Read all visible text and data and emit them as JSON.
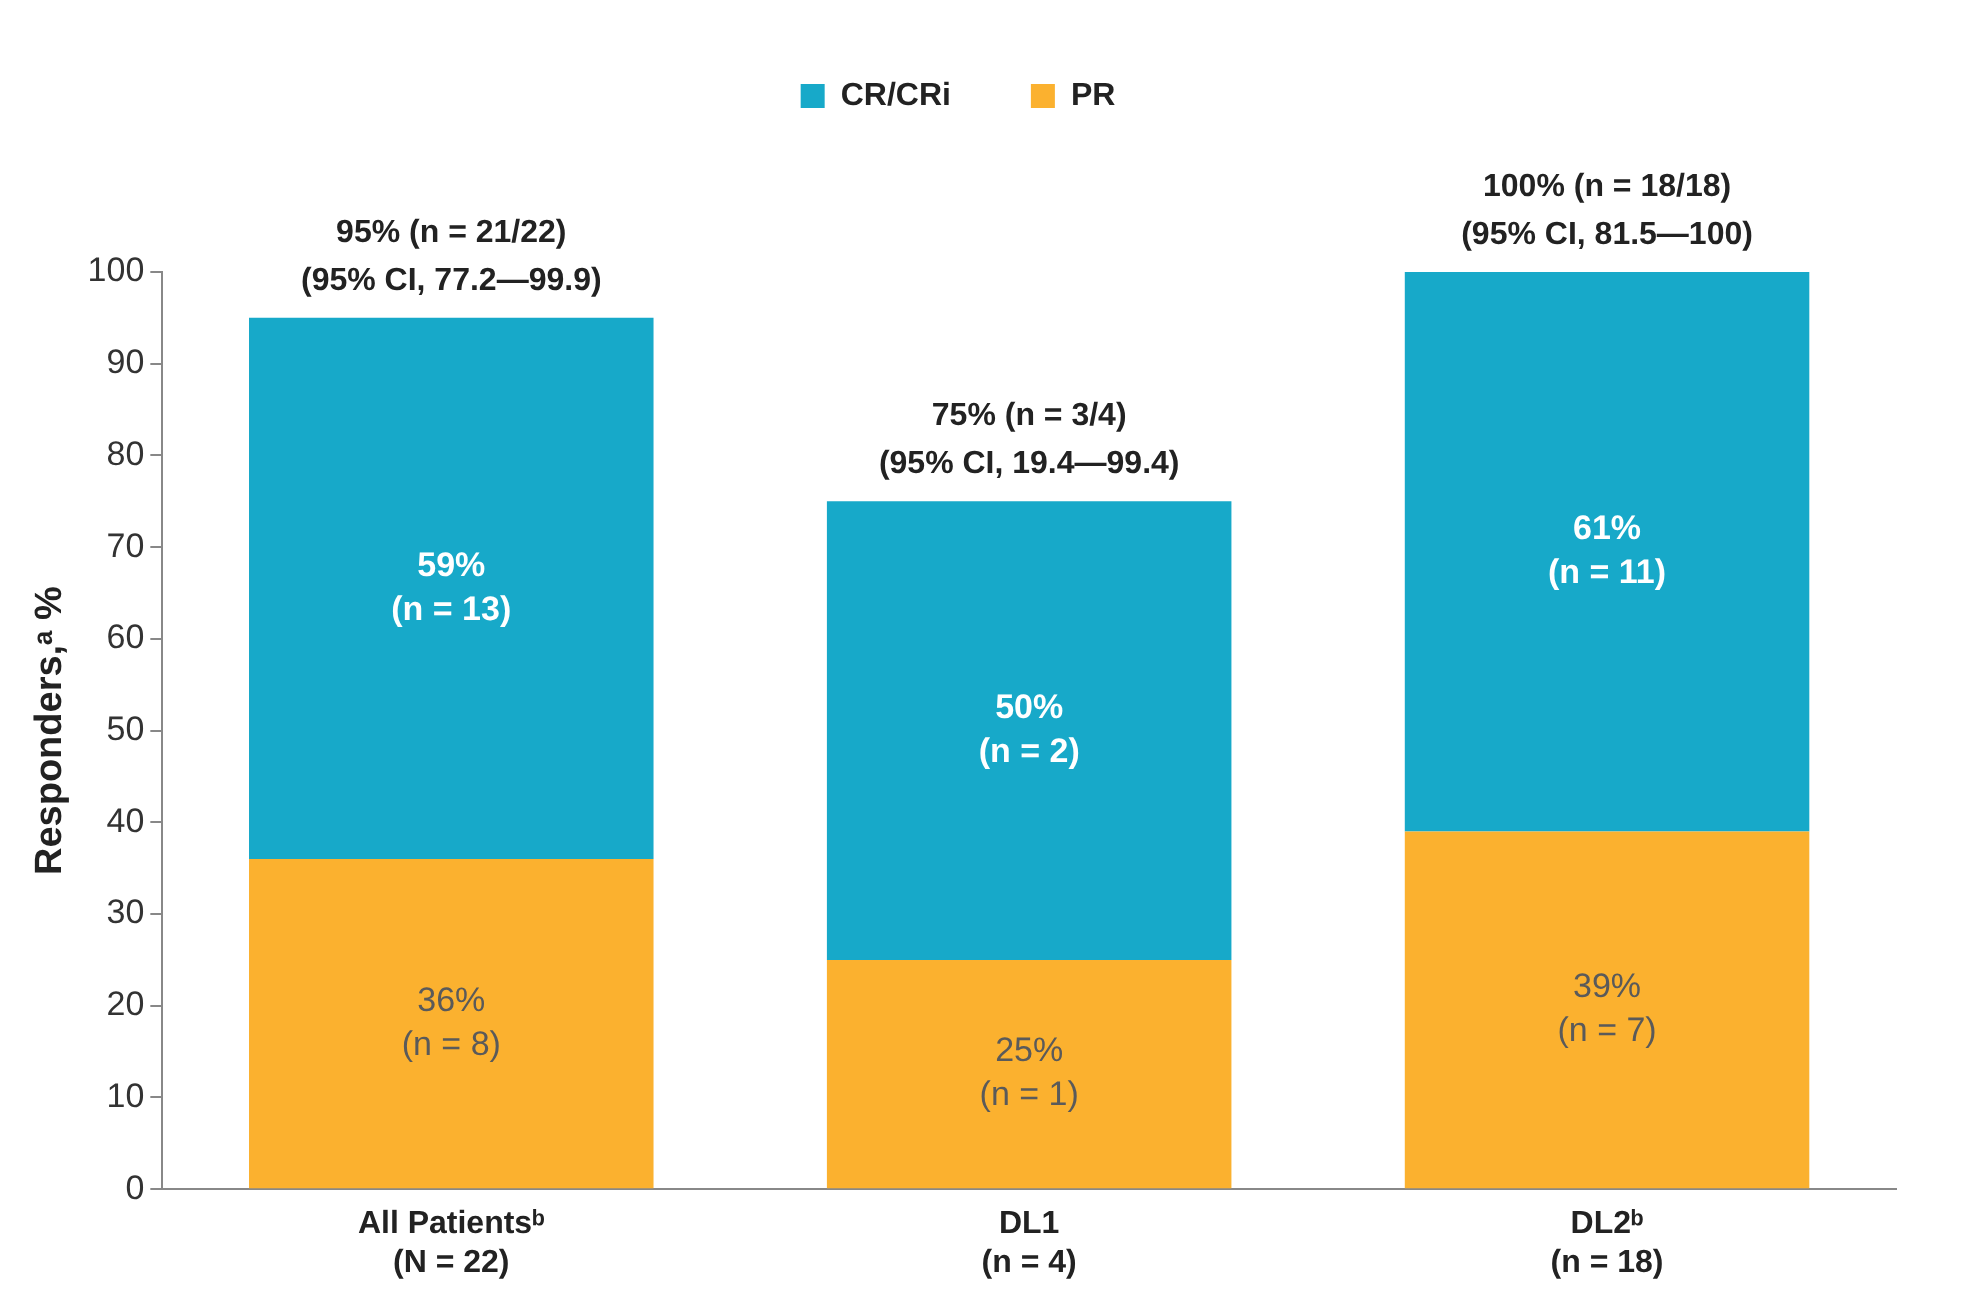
{
  "chart_data": {
    "type": "bar",
    "stacked": true,
    "ylabel": "Responders,ᵃ %",
    "categories": [
      "All Patientsᵇ\n(N = 22)",
      "DL1\n(n = 4)",
      "DL2ᵇ\n(n = 18)"
    ],
    "series": [
      {
        "name": "PR",
        "color": "#fbb12f",
        "values": [
          36,
          25,
          39
        ],
        "value_labels": [
          "36%\n(n = 8)",
          "25%\n(n = 1)",
          "39%\n(n = 7)"
        ]
      },
      {
        "name": "CR/CRi",
        "color": "#17a9c9",
        "values": [
          59,
          50,
          61
        ],
        "value_labels": [
          "59%\n(n = 13)",
          "50%\n(n = 2)",
          "61%\n(n = 11)"
        ]
      }
    ],
    "totals": [
      "95% (n = 21/22)\n(95% CI, 77.2—99.9)",
      "75% (n = 3/4)\n(95% CI, 19.4—99.4)",
      "100% (n = 18/18)\n(95% CI, 81.5—100)"
    ],
    "ylim": [
      0,
      100
    ],
    "yticks": [
      0,
      10,
      20,
      30,
      40,
      50,
      60,
      70,
      80,
      90,
      100
    ],
    "grid": false,
    "legend": "top"
  }
}
